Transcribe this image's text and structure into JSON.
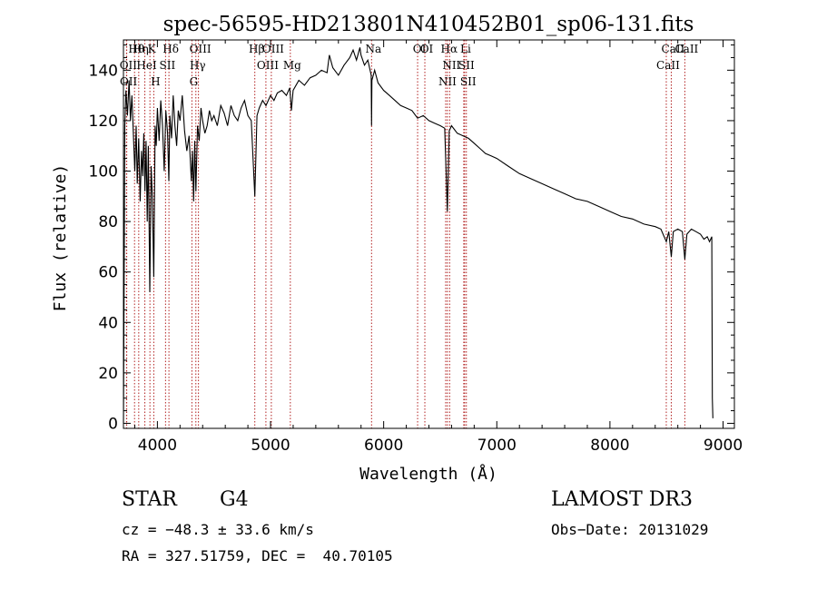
{
  "chart_data": {
    "type": "line",
    "title": "spec-56595-HD213801N410452B01_sp06-131.fits",
    "xlabel": "Wavelength (Å)",
    "ylabel": "Flux (relative)",
    "xlim": [
      3700,
      9100
    ],
    "ylim": [
      -2,
      152
    ],
    "x_ticks": [
      4000,
      5000,
      6000,
      7000,
      8000,
      9000
    ],
    "y_ticks": [
      0,
      20,
      40,
      60,
      80,
      100,
      120,
      140
    ],
    "grid": false,
    "series": [
      {
        "name": "flux",
        "color": "#000000",
        "x": [
          3700,
          3712,
          3722,
          3735,
          3750,
          3762,
          3775,
          3790,
          3800,
          3812,
          3822,
          3835,
          3848,
          3860,
          3870,
          3880,
          3890,
          3900,
          3910,
          3920,
          3933,
          3945,
          3955,
          3968,
          3980,
          3990,
          4000,
          4015,
          4030,
          4045,
          4060,
          4075,
          4090,
          4101,
          4110,
          4125,
          4140,
          4155,
          4170,
          4185,
          4200,
          4220,
          4240,
          4260,
          4280,
          4300,
          4310,
          4320,
          4330,
          4340,
          4355,
          4370,
          4385,
          4400,
          4420,
          4440,
          4460,
          4480,
          4500,
          4530,
          4560,
          4590,
          4620,
          4650,
          4680,
          4710,
          4740,
          4770,
          4800,
          4830,
          4861,
          4880,
          4900,
          4930,
          4960,
          5000,
          5030,
          5060,
          5100,
          5140,
          5170,
          5184,
          5200,
          5250,
          5300,
          5350,
          5400,
          5450,
          5500,
          5520,
          5550,
          5600,
          5650,
          5700,
          5730,
          5760,
          5790,
          5800,
          5830,
          5860,
          5890,
          5893,
          5896,
          5920,
          5950,
          6000,
          6050,
          6100,
          6150,
          6200,
          6250,
          6300,
          6350,
          6400,
          6450,
          6500,
          6540,
          6563,
          6580,
          6600,
          6650,
          6700,
          6750,
          6800,
          6850,
          6900,
          6950,
          7000,
          7100,
          7200,
          7300,
          7400,
          7500,
          7600,
          7700,
          7800,
          7900,
          8000,
          8100,
          8200,
          8300,
          8400,
          8450,
          8498,
          8520,
          8542,
          8560,
          8600,
          8640,
          8662,
          8680,
          8720,
          8760,
          8800,
          8830,
          8860,
          8880,
          8900,
          8905,
          8910
        ],
        "y": [
          0,
          118,
          132,
          122,
          136,
          120,
          130,
          112,
          100,
          118,
          95,
          113,
          88,
          108,
          98,
          115,
          92,
          112,
          80,
          110,
          52,
          102,
          90,
          58,
          118,
          110,
          125,
          112,
          128,
          118,
          100,
          124,
          115,
          96,
          122,
          113,
          130,
          118,
          110,
          124,
          120,
          130,
          116,
          108,
          114,
          96,
          108,
          88,
          112,
          92,
          118,
          112,
          125,
          120,
          115,
          118,
          124,
          120,
          122,
          118,
          126,
          123,
          118,
          126,
          122,
          120,
          125,
          128,
          122,
          120,
          90,
          122,
          125,
          128,
          126,
          130,
          128,
          131,
          132,
          130,
          133,
          124,
          132,
          136,
          134,
          137,
          138,
          140,
          139,
          146,
          141,
          138,
          142,
          145,
          148,
          144,
          149,
          146,
          142,
          144,
          138,
          118,
          136,
          140,
          135,
          132,
          130,
          128,
          126,
          125,
          124,
          121,
          122,
          120,
          119,
          118,
          117,
          84,
          116,
          118,
          115,
          114,
          113,
          111,
          109,
          107,
          106,
          105,
          102,
          99,
          97,
          95,
          93,
          91,
          89,
          88,
          86,
          84,
          82,
          81,
          79,
          78,
          77,
          72,
          76,
          66,
          76,
          77,
          76,
          65,
          75,
          77,
          76,
          75,
          73,
          74,
          72,
          74,
          10,
          2
        ]
      }
    ],
    "line_markers": [
      {
        "name": "Hθ",
        "wavelength": 3798
      },
      {
        "name": "OII",
        "wavelength": 3727
      },
      {
        "name": "OII",
        "wavelength": 3729
      },
      {
        "name": "K",
        "wavelength": 3934
      },
      {
        "name": "HeI",
        "wavelength": 3889
      },
      {
        "name": "Hη",
        "wavelength": 3835
      },
      {
        "name": "Hδ",
        "wavelength": 4102
      },
      {
        "name": "SII",
        "wavelength": 4072
      },
      {
        "name": "H",
        "wavelength": 3968
      },
      {
        "name": "OIII",
        "wavelength": 4363
      },
      {
        "name": "Hγ",
        "wavelength": 4340
      },
      {
        "name": "G",
        "wavelength": 4305
      },
      {
        "name": "Hβ",
        "wavelength": 4861
      },
      {
        "name": "OIII",
        "wavelength": 5007
      },
      {
        "name": "OIII",
        "wavelength": 4959
      },
      {
        "name": "Mg",
        "wavelength": 5175
      },
      {
        "name": "Na",
        "wavelength": 5893
      },
      {
        "name": "OI",
        "wavelength": 6300
      },
      {
        "name": "OI",
        "wavelength": 6364
      },
      {
        "name": "Hα",
        "wavelength": 6563
      },
      {
        "name": "SII",
        "wavelength": 6716
      },
      {
        "name": "NII",
        "wavelength": 6548
      },
      {
        "name": "Li",
        "wavelength": 6708
      },
      {
        "name": "NII",
        "wavelength": 6583
      },
      {
        "name": "SII",
        "wavelength": 6731
      },
      {
        "name": "CaII",
        "wavelength": 8542
      },
      {
        "name": "CaII",
        "wavelength": 8498
      },
      {
        "name": "CaII",
        "wavelength": 8662
      }
    ]
  },
  "info": {
    "object_class": "STAR",
    "subclass": "G4",
    "survey": "LAMOST DR3",
    "cz": "cz = −48.3 ± 33.6 km/s",
    "obs_date": "Obs−Date: 20131029",
    "coords": "RA = 327.51759, DEC =  40.70105"
  },
  "colors": {
    "line_marker": "#b22222",
    "spectrum": "#000000",
    "axes": "#000000"
  }
}
